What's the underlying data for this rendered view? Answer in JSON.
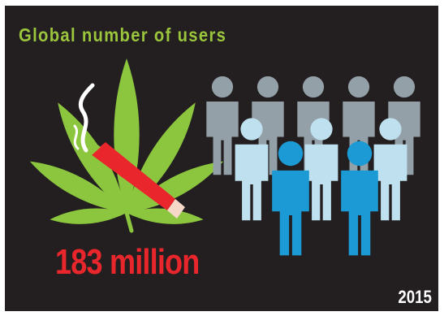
{
  "title": "Global number of users",
  "figure": "183 million",
  "year": "2015",
  "colors": {
    "background": "#231f20",
    "title": "#9ac53c",
    "figure": "#e8262b",
    "leaf": "#8cc63f",
    "joint": "#e8262b",
    "smoke": "#ffffff",
    "person_back": "#93a0a8",
    "person_middle": "#bfe0ee",
    "person_front": "#1b9ad6",
    "year": "#ffffff"
  },
  "icons": [
    "cannabis-leaf-icon",
    "joint-icon",
    "smoke-icon",
    "person-icon"
  ]
}
